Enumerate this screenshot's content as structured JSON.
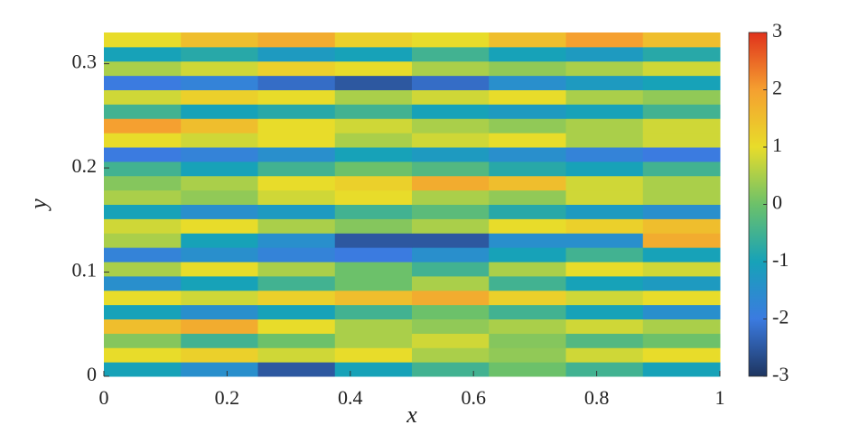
{
  "chart_data": {
    "type": "heatmap",
    "x_label": "x",
    "y_label": "y",
    "xlim": [
      0,
      1
    ],
    "ylim": [
      0,
      0.33
    ],
    "xticks": [
      0,
      0.2,
      0.4,
      0.6,
      0.8,
      1
    ],
    "yticks": [
      0,
      0.1,
      0.2,
      0.3
    ],
    "clim": [
      -3,
      3
    ],
    "cticks": [
      -3,
      -2,
      -1,
      0,
      1,
      2,
      3
    ],
    "colormap": [
      "#1e3560",
      "#3b7be0",
      "#17a2b8",
      "#6cc16a",
      "#e8dc2a",
      "#f5a030",
      "#e0321c"
    ],
    "z": [
      [
        -1,
        -1.5,
        -2.5,
        -1,
        -0.5,
        0,
        -0.5,
        -1
      ],
      [
        1,
        1.2,
        0.8,
        1,
        0.5,
        0.3,
        0.8,
        1
      ],
      [
        0.2,
        -0.5,
        0,
        0.5,
        0.8,
        0.2,
        -0.3,
        0
      ],
      [
        1.5,
        1.8,
        1,
        0.5,
        0.3,
        0.5,
        0.8,
        0.5
      ],
      [
        -1,
        -1.5,
        -1,
        -0.5,
        0,
        -0.5,
        -1,
        -1.5
      ],
      [
        1,
        0.8,
        1.2,
        1.5,
        1.8,
        1.2,
        0.8,
        1
      ],
      [
        -1.5,
        -1,
        -0.5,
        0,
        0.5,
        -0.5,
        -1,
        -1.2
      ],
      [
        0.5,
        1,
        0.5,
        0,
        -0.5,
        0.5,
        1,
        0.8
      ],
      [
        -1.8,
        -1.5,
        -1.8,
        -2,
        -1.5,
        -1,
        -0.5,
        -1
      ],
      [
        0.5,
        -1,
        -1.5,
        -2.5,
        -2.5,
        -1.5,
        -1.5,
        1.8
      ],
      [
        0.8,
        1,
        0.5,
        0.2,
        0.5,
        1,
        1.2,
        1.5
      ],
      [
        -1,
        -1.5,
        -1.2,
        -0.5,
        -0.2,
        -0.8,
        -1.2,
        -1.5
      ],
      [
        0.5,
        0.3,
        0.8,
        1,
        0.5,
        0.3,
        0.8,
        0.5
      ],
      [
        0.2,
        0.5,
        1,
        1.2,
        1.8,
        1.5,
        0.8,
        0.5
      ],
      [
        -0.5,
        -1,
        -0.5,
        0,
        -0.3,
        -0.8,
        -1,
        -0.5
      ],
      [
        -2,
        -1.8,
        -1.5,
        -1,
        -1.2,
        -1.5,
        -1.8,
        -2
      ],
      [
        1,
        0.8,
        1,
        0.5,
        0.8,
        1,
        0.5,
        0.8
      ],
      [
        2,
        1.5,
        1,
        0.8,
        0.5,
        0.3,
        0.5,
        0.8
      ],
      [
        -0.5,
        -1,
        -0.8,
        -0.5,
        -1,
        -1.2,
        -1,
        -0.5
      ],
      [
        0.8,
        1.2,
        1,
        0.5,
        0.8,
        1,
        0.5,
        0.3
      ],
      [
        -2,
        -1.8,
        -2.2,
        -2.5,
        -2.2,
        -1.5,
        -1.2,
        -1
      ],
      [
        0.5,
        0.8,
        1.2,
        1,
        0.5,
        0.3,
        0.5,
        0.8
      ],
      [
        -1,
        -0.8,
        -1.2,
        -1,
        -0.5,
        -1,
        -1.2,
        -0.8
      ],
      [
        1,
        1.5,
        1.8,
        1.2,
        1,
        1.5,
        2,
        1.5
      ]
    ]
  }
}
